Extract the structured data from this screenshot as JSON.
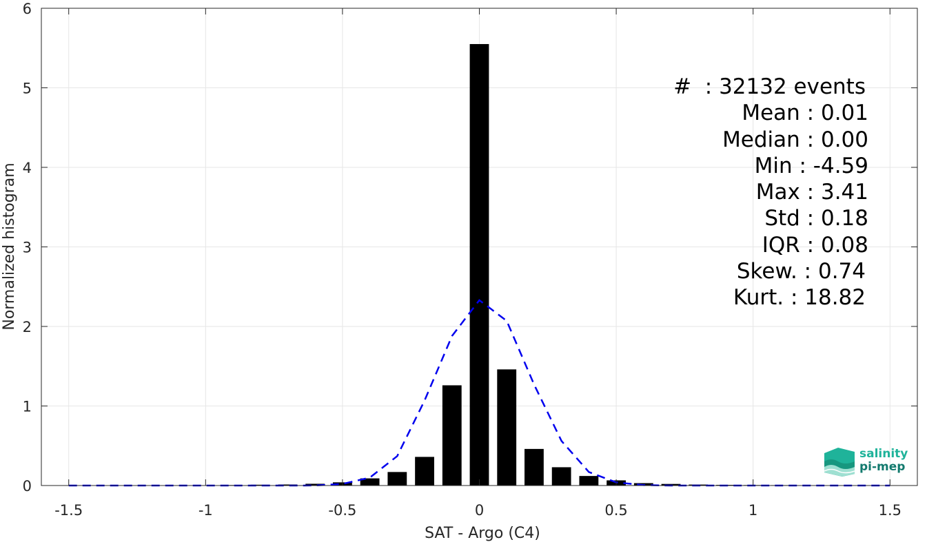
{
  "chart_data": {
    "type": "bar",
    "xlabel": "SAT - Argo (C4)",
    "ylabel": "Normalized histogram",
    "xlim": [
      -1.6,
      1.6
    ],
    "ylim": [
      0,
      6
    ],
    "xticks": [
      -1.5,
      -1,
      -0.5,
      0,
      0.5,
      1,
      1.5
    ],
    "xtick_labels": [
      "-1.5",
      "-1",
      "-0.5",
      "0",
      "0.5",
      "1",
      "1.5"
    ],
    "yticks": [
      0,
      1,
      2,
      3,
      4,
      5,
      6
    ],
    "ytick_labels": [
      "0",
      "1",
      "2",
      "3",
      "4",
      "5",
      "6"
    ],
    "grid": true,
    "bar_width": 0.07,
    "bar_color": "#000000",
    "x": [
      -1.5,
      -1.4,
      -1.3,
      -1.2,
      -1.1,
      -1.0,
      -0.9,
      -0.8,
      -0.7,
      -0.6,
      -0.5,
      -0.4,
      -0.3,
      -0.2,
      -0.1,
      0.0,
      0.1,
      0.2,
      0.3,
      0.4,
      0.5,
      0.6,
      0.7,
      0.8,
      0.9,
      1.0,
      1.1,
      1.2,
      1.3,
      1.4,
      1.5
    ],
    "values": [
      0.003,
      0.002,
      0.002,
      0.002,
      0.003,
      0.004,
      0.006,
      0.01,
      0.013,
      0.022,
      0.04,
      0.09,
      0.17,
      0.36,
      1.26,
      5.55,
      1.46,
      0.46,
      0.23,
      0.12,
      0.065,
      0.03,
      0.02,
      0.012,
      0.008,
      0.006,
      0.005,
      0.004,
      0.003,
      0.003,
      0.002
    ],
    "fit_curve": {
      "style": "dashed",
      "color": "#0000ee",
      "x": [
        -1.5,
        -1.4,
        -1.3,
        -1.2,
        -1.1,
        -1.0,
        -0.9,
        -0.8,
        -0.7,
        -0.6,
        -0.5,
        -0.4,
        -0.3,
        -0.2,
        -0.1,
        0.0,
        0.1,
        0.2,
        0.3,
        0.4,
        0.5,
        0.6,
        0.7,
        0.8,
        0.9,
        1.0,
        1.1,
        1.2,
        1.3,
        1.4,
        1.5
      ],
      "y": [
        0,
        0,
        0,
        0,
        0,
        0,
        0,
        0,
        0,
        0.001,
        0.02,
        0.1,
        0.37,
        1.07,
        1.88,
        2.33,
        2.07,
        1.27,
        0.56,
        0.17,
        0.04,
        0.005,
        0,
        0,
        0,
        0,
        0,
        0,
        0,
        0,
        0
      ]
    }
  },
  "stats": {
    "count": "#  : 32132 events",
    "mean": "Mean : 0.01",
    "median": "Median : 0.00",
    "min": "Min : -4.59",
    "max": "Max : 3.41",
    "std": "Std : 0.18",
    "iqr": "IQR : 0.08",
    "skew": "Skew. : 0.74",
    "kurt": "Kurt. : 18.82"
  },
  "logo": {
    "line1": "salinity",
    "line2": "pi-mep",
    "colors": [
      "#1fb39a",
      "#137a6e"
    ]
  }
}
